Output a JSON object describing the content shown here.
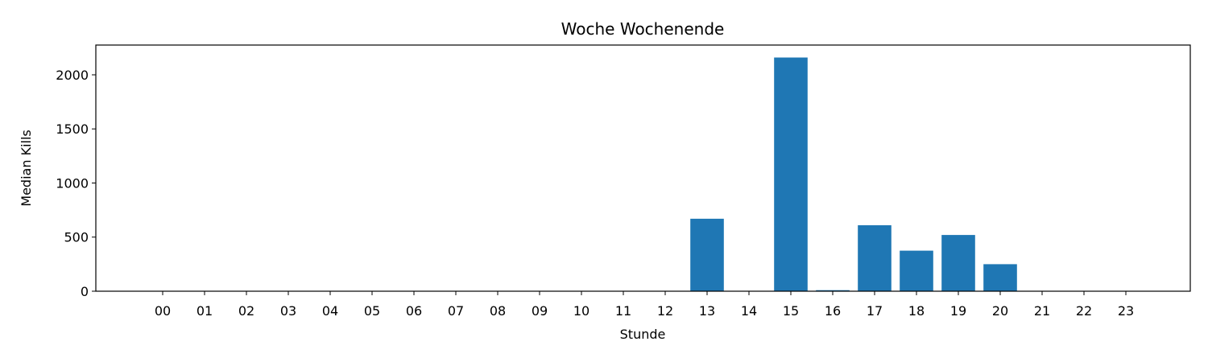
{
  "chart_data": {
    "type": "bar",
    "title": "Woche Wochenende",
    "xlabel": "Stunde",
    "ylabel": "Median Kills",
    "categories": [
      "00",
      "01",
      "02",
      "03",
      "04",
      "05",
      "06",
      "07",
      "08",
      "09",
      "10",
      "11",
      "12",
      "13",
      "14",
      "15",
      "16",
      "17",
      "18",
      "19",
      "20",
      "21",
      "22",
      "23"
    ],
    "values": [
      0,
      0,
      0,
      0,
      0,
      0,
      0,
      0,
      0,
      0,
      0,
      0,
      0,
      670,
      0,
      2160,
      10,
      610,
      375,
      520,
      250,
      0,
      0,
      0
    ],
    "ylim": [
      0,
      2275
    ],
    "yticks": [
      0,
      500,
      1000,
      1500,
      2000
    ],
    "ytick_labels": [
      "0",
      "500",
      "1000",
      "1500",
      "2000"
    ],
    "grid": false,
    "bar_color": "#1f77b4"
  }
}
